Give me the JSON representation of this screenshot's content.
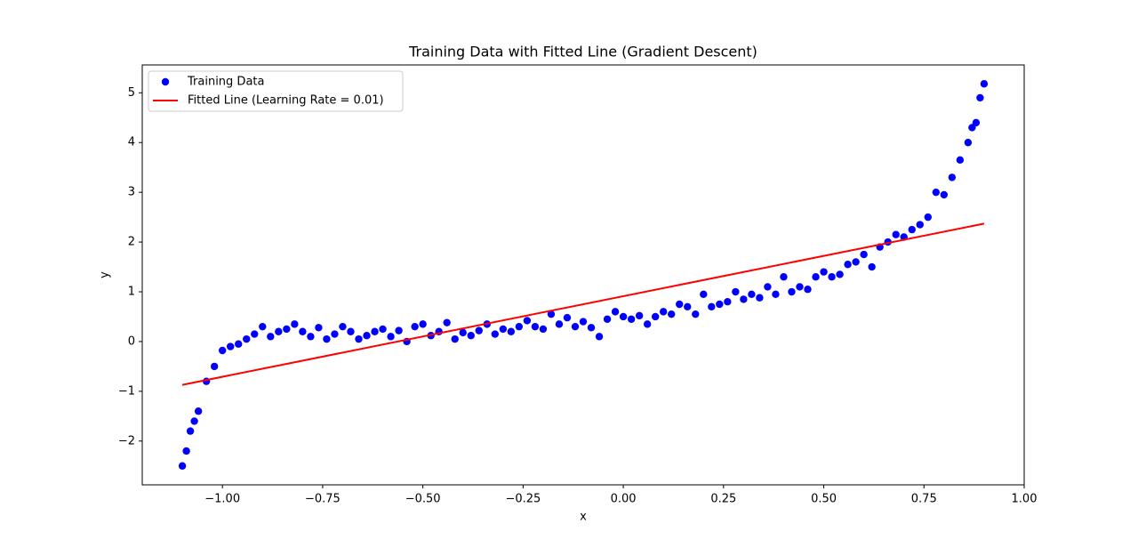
{
  "chart_data": {
    "type": "scatter",
    "title": "Training Data with Fitted Line (Gradient Descent)",
    "xlabel": "x",
    "ylabel": "y",
    "xlim": [
      -1.2,
      1.0
    ],
    "ylim": [
      -2.88,
      5.56
    ],
    "xticks": [
      {
        "value": -1,
        "label": "−1.00"
      },
      {
        "value": -0.75,
        "label": "−0.75"
      },
      {
        "value": -0.5,
        "label": "−0.50"
      },
      {
        "value": -0.25,
        "label": "−0.25"
      },
      {
        "value": 0,
        "label": "0.00"
      },
      0.25,
      {
        "value": 0.5,
        "label": "0.50"
      },
      0.75,
      {
        "value": 1,
        "label": "1.00"
      }
    ],
    "yticks": [
      {
        "value": -2,
        "label": "−2"
      },
      {
        "value": -1,
        "label": "−1"
      },
      0,
      1,
      2,
      3,
      4,
      5
    ],
    "legend": "upper left",
    "series": [
      {
        "name": "Training Data",
        "type": "scatter",
        "color": "#0000ff",
        "x": [
          -1.1,
          -1.08,
          -1.06,
          -1.04,
          -1.02,
          -1.0,
          -0.98,
          -0.96,
          -0.94,
          -0.92,
          -0.9,
          -0.88,
          -0.86,
          -0.84,
          -0.82,
          -0.8,
          -0.78,
          -0.76,
          -0.74,
          -0.72,
          -0.7,
          -0.68,
          -0.66,
          -0.64,
          -0.62,
          -0.6,
          -0.58,
          -0.56,
          -0.54,
          -0.52,
          -0.5,
          -0.48,
          -0.46,
          -0.44,
          -0.42,
          -0.4,
          -0.38,
          -0.36,
          -0.34,
          -0.32,
          -0.3,
          -0.28,
          -0.26,
          -0.24,
          -0.22,
          -0.2,
          -0.18,
          -0.16,
          -0.14,
          -0.12,
          -0.1,
          -0.08,
          -0.06,
          -0.04,
          -0.02,
          0.0,
          0.02,
          0.04,
          0.06,
          0.08,
          0.1,
          0.12,
          0.14,
          0.16,
          0.18,
          0.2,
          0.22,
          0.24,
          0.26,
          0.28,
          0.3,
          0.32,
          0.34,
          0.36,
          0.38,
          0.4,
          0.42,
          0.44,
          0.46,
          0.48,
          0.5,
          0.52,
          0.54,
          0.56,
          0.58,
          0.6,
          0.62,
          0.64,
          0.66,
          0.68,
          0.7,
          0.72,
          0.74,
          0.76,
          0.78,
          0.8,
          0.82,
          0.84,
          0.86,
          0.88,
          0.9,
          -1.09,
          -1.07,
          0.89,
          0.87
        ],
        "values": [
          -2.5,
          -1.8,
          -1.4,
          -0.8,
          -0.5,
          -0.18,
          -0.1,
          -0.05,
          0.05,
          0.15,
          0.3,
          0.1,
          0.2,
          0.25,
          0.35,
          0.2,
          0.1,
          0.28,
          0.05,
          0.15,
          0.3,
          0.2,
          0.05,
          0.12,
          0.2,
          0.25,
          0.1,
          0.22,
          0.0,
          0.3,
          0.35,
          0.12,
          0.2,
          0.38,
          0.05,
          0.18,
          0.12,
          0.22,
          0.35,
          0.15,
          0.25,
          0.2,
          0.3,
          0.42,
          0.3,
          0.25,
          0.55,
          0.35,
          0.48,
          0.3,
          0.4,
          0.28,
          0.1,
          0.45,
          0.6,
          0.5,
          0.45,
          0.52,
          0.35,
          0.5,
          0.6,
          0.55,
          0.75,
          0.7,
          0.55,
          0.95,
          0.7,
          0.75,
          0.8,
          1.0,
          0.85,
          0.95,
          0.88,
          1.1,
          0.95,
          1.3,
          1.0,
          1.1,
          1.05,
          1.3,
          1.4,
          1.3,
          1.35,
          1.55,
          1.6,
          1.75,
          1.5,
          1.9,
          2.0,
          2.15,
          2.1,
          2.25,
          2.35,
          2.5,
          3.0,
          2.95,
          3.3,
          3.65,
          4.0,
          4.4,
          5.18,
          -2.2,
          -1.6,
          4.9,
          4.3
        ]
      },
      {
        "name": "Fitted Line (Learning Rate = 0.01)",
        "type": "line",
        "color": "#ff0000",
        "x": [
          -1.1,
          0.9
        ],
        "values": [
          -0.87,
          2.37
        ]
      }
    ]
  }
}
